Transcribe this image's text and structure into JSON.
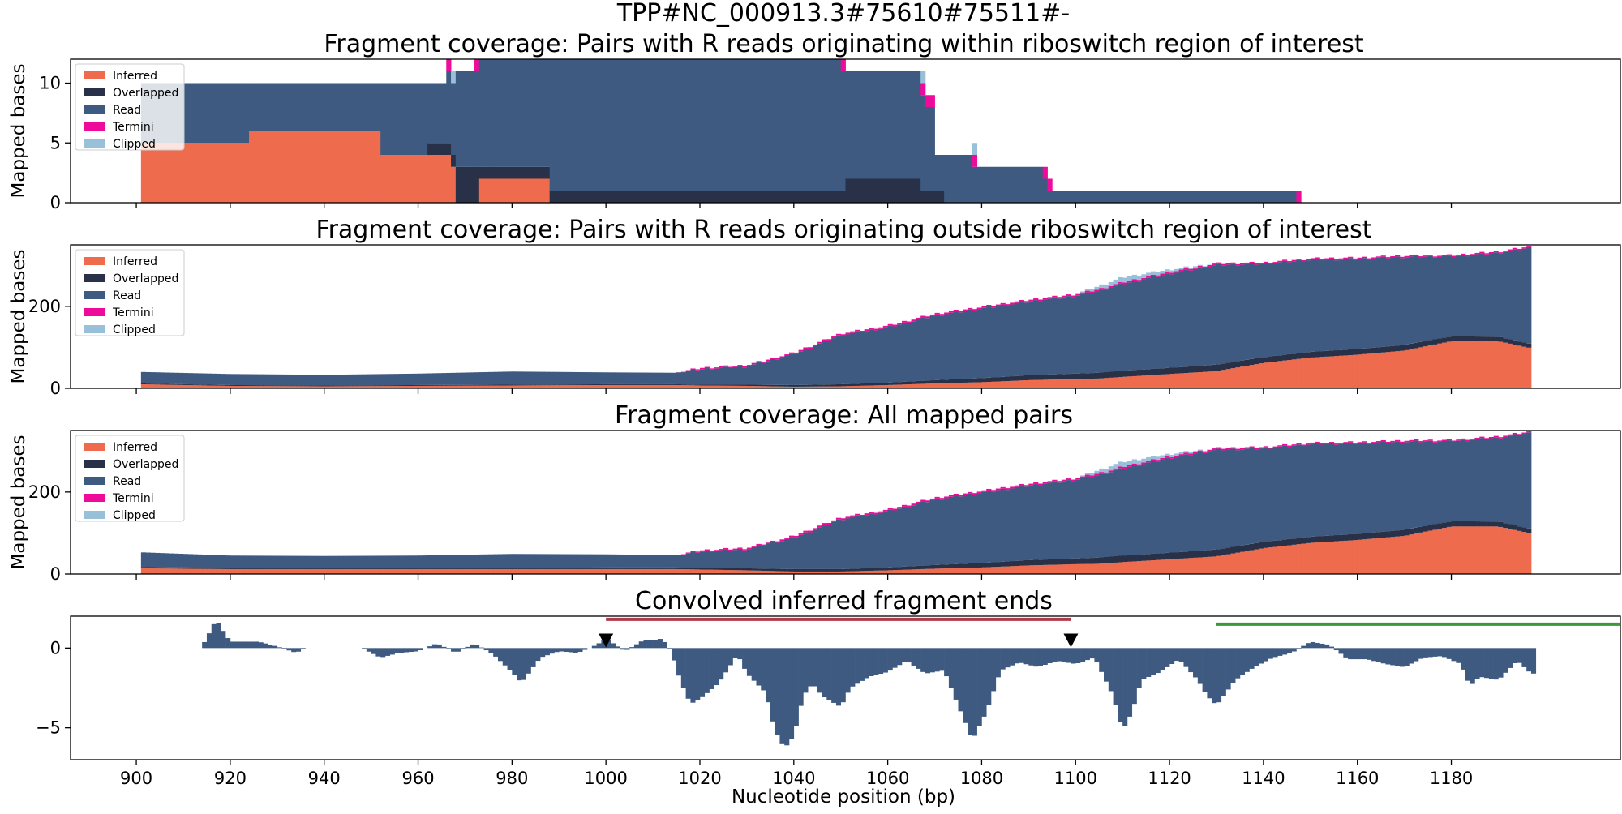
{
  "figure": {
    "title": "TPP#NC_000913.3#75610#75511#-",
    "xlabel": "Nucleotide position (bp)"
  },
  "colors": {
    "inferred": "#ee6b4e",
    "overlapped": "#283147",
    "read": "#3e5a80",
    "termini": "#ee0a9a",
    "clipped": "#98c1d9",
    "riboswitch_bar": "#b03a48",
    "green_bar": "#3a9a3a",
    "marker": "#000000"
  },
  "legend_items": [
    "Inferred",
    "Overlapped",
    "Read",
    "Termini",
    "Clipped"
  ],
  "chart_data": [
    {
      "type": "area",
      "stacked": true,
      "title": "Fragment coverage: Pairs with R reads originating within riboswitch region of interest",
      "ylabel": "Mapped bases",
      "xlim": [
        886,
        1216
      ],
      "ylim": [
        0,
        12
      ],
      "yticks": [
        0,
        5,
        10
      ],
      "xticks": [
        900,
        920,
        940,
        960,
        980,
        1000,
        1020,
        1040,
        1060,
        1080,
        1100,
        1120,
        1140,
        1160,
        1180
      ],
      "legend": "top-left",
      "series_order": [
        "Inferred",
        "Overlapped",
        "Read",
        "Termini",
        "Clipped"
      ],
      "segments": [
        {
          "x0": 901,
          "x1": 910,
          "inferred": 5,
          "overlapped": 0,
          "read": 5,
          "termini": 0,
          "clipped": 0
        },
        {
          "x0": 910,
          "x1": 924,
          "inferred": 5,
          "overlapped": 0,
          "read": 5,
          "termini": 0,
          "clipped": 0
        },
        {
          "x0": 924,
          "x1": 940,
          "inferred": 6,
          "overlapped": 0,
          "read": 4,
          "termini": 0,
          "clipped": 0
        },
        {
          "x0": 940,
          "x1": 952,
          "inferred": 6,
          "overlapped": 0,
          "read": 4,
          "termini": 0,
          "clipped": 0
        },
        {
          "x0": 952,
          "x1": 962,
          "inferred": 4,
          "overlapped": 0,
          "read": 6,
          "termini": 0,
          "clipped": 0
        },
        {
          "x0": 962,
          "x1": 966,
          "inferred": 4,
          "overlapped": 1,
          "read": 5,
          "termini": 0,
          "clipped": 0
        },
        {
          "x0": 966,
          "x1": 967,
          "inferred": 4,
          "overlapped": 1,
          "read": 6,
          "termini": 1,
          "clipped": 0
        },
        {
          "x0": 967,
          "x1": 968,
          "inferred": 3,
          "overlapped": 1,
          "read": 6,
          "termini": 0,
          "clipped": 1
        },
        {
          "x0": 968,
          "x1": 972,
          "inferred": 0,
          "overlapped": 3,
          "read": 8,
          "termini": 0,
          "clipped": 0
        },
        {
          "x0": 972,
          "x1": 973,
          "inferred": 0,
          "overlapped": 3,
          "read": 8,
          "termini": 1,
          "clipped": 0
        },
        {
          "x0": 973,
          "x1": 976,
          "inferred": 2,
          "overlapped": 1,
          "read": 9,
          "termini": 0,
          "clipped": 0
        },
        {
          "x0": 976,
          "x1": 988,
          "inferred": 2,
          "overlapped": 1,
          "read": 9,
          "termini": 0,
          "clipped": 0
        },
        {
          "x0": 988,
          "x1": 990,
          "inferred": 0,
          "overlapped": 1,
          "read": 11,
          "termini": 0,
          "clipped": 0
        },
        {
          "x0": 990,
          "x1": 1050,
          "inferred": 0,
          "overlapped": 1,
          "read": 11,
          "termini": 0,
          "clipped": 0
        },
        {
          "x0": 1050,
          "x1": 1051,
          "inferred": 0,
          "overlapped": 1,
          "read": 10,
          "termini": 1,
          "clipped": 0
        },
        {
          "x0": 1051,
          "x1": 1067,
          "inferred": 0,
          "overlapped": 2,
          "read": 9,
          "termini": 0,
          "clipped": 0
        },
        {
          "x0": 1067,
          "x1": 1068,
          "inferred": 0,
          "overlapped": 1,
          "read": 8,
          "termini": 1,
          "clipped": 1
        },
        {
          "x0": 1068,
          "x1": 1070,
          "inferred": 0,
          "overlapped": 1,
          "read": 7,
          "termini": 1,
          "clipped": 0
        },
        {
          "x0": 1070,
          "x1": 1072,
          "inferred": 0,
          "overlapped": 1,
          "read": 3,
          "termini": 0,
          "clipped": 0
        },
        {
          "x0": 1072,
          "x1": 1078,
          "inferred": 0,
          "overlapped": 0,
          "read": 4,
          "termini": 0,
          "clipped": 0
        },
        {
          "x0": 1078,
          "x1": 1079,
          "inferred": 0,
          "overlapped": 0,
          "read": 3,
          "termini": 1,
          "clipped": 1
        },
        {
          "x0": 1079,
          "x1": 1093,
          "inferred": 0,
          "overlapped": 0,
          "read": 3,
          "termini": 0,
          "clipped": 0
        },
        {
          "x0": 1093,
          "x1": 1094,
          "inferred": 0,
          "overlapped": 0,
          "read": 2,
          "termini": 1,
          "clipped": 0
        },
        {
          "x0": 1094,
          "x1": 1095,
          "inferred": 0,
          "overlapped": 0,
          "read": 1,
          "termini": 1,
          "clipped": 0
        },
        {
          "x0": 1095,
          "x1": 1147,
          "inferred": 0,
          "overlapped": 0,
          "read": 1,
          "termini": 0,
          "clipped": 0
        },
        {
          "x0": 1147,
          "x1": 1148,
          "inferred": 0,
          "overlapped": 0,
          "read": 0,
          "termini": 1,
          "clipped": 0
        }
      ]
    },
    {
      "type": "area",
      "stacked": true,
      "title": "Fragment coverage: Pairs with R reads originating outside riboswitch region of interest",
      "ylabel": "Mapped bases",
      "xlim": [
        886,
        1216
      ],
      "ylim": [
        0,
        350
      ],
      "yticks": [
        0,
        200
      ],
      "legend": "top-left",
      "series_order": [
        "Inferred",
        "Overlapped",
        "Read",
        "Termini",
        "Clipped"
      ],
      "profile_x": [
        901,
        920,
        940,
        960,
        980,
        1000,
        1015,
        1020,
        1030,
        1040,
        1050,
        1060,
        1070,
        1080,
        1090,
        1100,
        1105,
        1110,
        1120,
        1130,
        1140,
        1150,
        1160,
        1170,
        1180,
        1190,
        1197
      ],
      "profile": {
        "inferred": [
          10,
          6,
          5,
          6,
          7,
          8,
          8,
          7,
          6,
          4,
          5,
          8,
          12,
          15,
          20,
          23,
          24,
          28,
          35,
          42,
          62,
          75,
          82,
          92,
          115,
          115,
          98
        ],
        "overlapped": [
          2,
          2,
          2,
          2,
          2,
          2,
          2,
          2,
          3,
          4,
          5,
          6,
          8,
          10,
          12,
          13,
          14,
          15,
          15,
          16,
          14,
          14,
          14,
          14,
          12,
          11,
          10
        ],
        "read": [
          28,
          27,
          26,
          28,
          32,
          29,
          28,
          38,
          45,
          75,
          120,
          135,
          158,
          170,
          180,
          190,
          200,
          212,
          230,
          243,
          228,
          225,
          220,
          215,
          195,
          205,
          236
        ],
        "termini": [
          0,
          0,
          0,
          0,
          0,
          0,
          0,
          3,
          3,
          4,
          4,
          4,
          4,
          4,
          4,
          4,
          4,
          4,
          4,
          4,
          3,
          3,
          3,
          3,
          3,
          3,
          3
        ],
        "clipped": [
          0,
          0,
          0,
          0,
          0,
          0,
          0,
          0,
          0,
          0,
          0,
          0,
          0,
          0,
          0,
          0,
          8,
          12,
          6,
          0,
          0,
          0,
          0,
          0,
          0,
          0,
          0
        ]
      }
    },
    {
      "type": "area",
      "stacked": true,
      "title": "Fragment coverage: All mapped pairs",
      "ylabel": "Mapped bases",
      "xlim": [
        886,
        1216
      ],
      "ylim": [
        0,
        350
      ],
      "yticks": [
        0,
        200
      ],
      "legend": "top-left",
      "series_order": [
        "Inferred",
        "Overlapped",
        "Read",
        "Termini",
        "Clipped"
      ],
      "profile_x": [
        901,
        920,
        940,
        960,
        980,
        1000,
        1015,
        1020,
        1030,
        1040,
        1050,
        1060,
        1070,
        1080,
        1090,
        1100,
        1105,
        1110,
        1120,
        1130,
        1140,
        1150,
        1160,
        1170,
        1180,
        1190,
        1197
      ],
      "profile": {
        "inferred": [
          14,
          12,
          12,
          12,
          12,
          12,
          12,
          11,
          9,
          6,
          6,
          9,
          13,
          16,
          21,
          24,
          25,
          29,
          36,
          43,
          63,
          76,
          83,
          93,
          116,
          116,
          99
        ],
        "overlapped": [
          3,
          3,
          3,
          3,
          3,
          4,
          4,
          4,
          5,
          6,
          6,
          7,
          9,
          11,
          13,
          14,
          15,
          16,
          16,
          17,
          15,
          15,
          15,
          15,
          13,
          12,
          11
        ],
        "read": [
          36,
          30,
          29,
          30,
          34,
          32,
          30,
          40,
          47,
          77,
          122,
          137,
          160,
          172,
          182,
          192,
          202,
          213,
          231,
          243,
          229,
          226,
          221,
          215,
          195,
          205,
          235
        ],
        "termini": [
          0,
          0,
          0,
          0,
          0,
          0,
          0,
          3,
          3,
          4,
          4,
          4,
          4,
          4,
          4,
          4,
          4,
          4,
          4,
          4,
          3,
          3,
          3,
          3,
          3,
          3,
          3
        ],
        "clipped": [
          0,
          0,
          0,
          0,
          0,
          0,
          0,
          0,
          0,
          0,
          0,
          0,
          0,
          0,
          0,
          0,
          8,
          12,
          6,
          0,
          0,
          0,
          0,
          0,
          0,
          0,
          0
        ]
      }
    },
    {
      "type": "bar",
      "title": "Convolved inferred fragment ends",
      "ylabel": "",
      "xlabel": "Nucleotide position (bp)",
      "xlim": [
        886,
        1216
      ],
      "ylim": [
        -7,
        2
      ],
      "yticks": [
        -5,
        0
      ],
      "xticks": [
        900,
        920,
        940,
        960,
        980,
        1000,
        1020,
        1040,
        1060,
        1080,
        1100,
        1120,
        1140,
        1160,
        1180
      ],
      "profile_x": [
        914,
        916,
        917,
        918,
        920,
        922,
        926,
        930,
        934,
        936,
        948,
        952,
        956,
        960,
        964,
        968,
        972,
        976,
        980,
        982,
        986,
        990,
        994,
        998,
        1000,
        1004,
        1008,
        1010,
        1012,
        1014,
        1016,
        1018,
        1020,
        1024,
        1028,
        1030,
        1034,
        1036,
        1038,
        1040,
        1042,
        1044,
        1046,
        1050,
        1052,
        1056,
        1060,
        1064,
        1068,
        1072,
        1075,
        1078,
        1081,
        1084,
        1088,
        1092,
        1096,
        1100,
        1104,
        1108,
        1110,
        1112,
        1114,
        1118,
        1122,
        1126,
        1128,
        1130,
        1134,
        1138,
        1142,
        1146,
        1150,
        1154,
        1158,
        1162,
        1166,
        1170,
        1174,
        1178,
        1182,
        1184,
        1186,
        1190,
        1194,
        1197
      ],
      "profile_y": [
        0.1,
        1.2,
        1.8,
        1.3,
        0.4,
        0.4,
        0.4,
        0.1,
        -0.3,
        0,
        0,
        -0.6,
        -0.3,
        -0.2,
        0.3,
        -0.3,
        0.3,
        -0.4,
        -1.5,
        -2.2,
        -0.6,
        -0.2,
        -0.3,
        0.2,
        0.6,
        -0.2,
        0.5,
        0.5,
        0.6,
        -0.3,
        -2.2,
        -3.5,
        -3.2,
        -2.2,
        -0.4,
        -1.6,
        -2.8,
        -5.2,
        -6.3,
        -5.5,
        -3.0,
        -2.2,
        -3.0,
        -3.7,
        -2.5,
        -1.8,
        -1.5,
        -0.8,
        -1.6,
        -1.4,
        -3.6,
        -5.8,
        -4.0,
        -1.4,
        -0.9,
        -1.2,
        -0.8,
        -1.0,
        -0.6,
        -3.0,
        -5.2,
        -4.0,
        -2.0,
        -1.5,
        -0.7,
        -2.0,
        -3.0,
        -3.6,
        -2.0,
        -1.2,
        -0.6,
        -0.3,
        0.4,
        0.2,
        -0.7,
        -0.7,
        -1.0,
        -1.2,
        -0.6,
        -0.5,
        -1.0,
        -2.4,
        -1.8,
        -2.0,
        -0.8,
        -1.6
      ],
      "annotations": {
        "bar_red": {
          "x0": 1000,
          "x1": 1099,
          "y": 1.8
        },
        "bar_green": {
          "x0": 1130,
          "x1": 1216,
          "y": 1.5
        },
        "markers": [
          {
            "x": 1000,
            "y": 0.4
          },
          {
            "x": 1099,
            "y": 0.4
          }
        ]
      }
    }
  ]
}
